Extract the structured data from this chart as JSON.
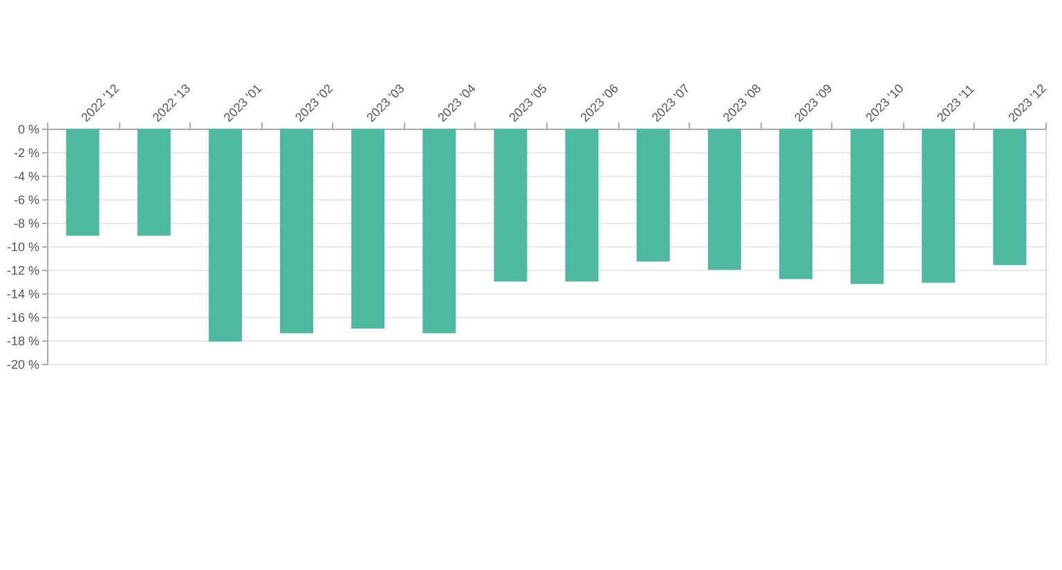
{
  "chart_data": {
    "type": "bar",
    "categories": [
      "2022 '12",
      "2022 '13",
      "2023 '01",
      "2023 '02",
      "2023 '03",
      "2023 '04",
      "2023 '05",
      "2023 '06",
      "2023 '07",
      "2023 '08",
      "2023 '09",
      "2023 '10",
      "2023 '11",
      "2023 '12"
    ],
    "values": [
      -9.1,
      -9.1,
      -18.1,
      -17.4,
      -17.0,
      -17.4,
      -13.0,
      -13.0,
      -11.3,
      -12.0,
      -12.8,
      -13.2,
      -13.1,
      -11.6
    ],
    "color": "#4cb9a0",
    "ylim": [
      -20,
      0
    ],
    "yticks": [
      {
        "value": 0,
        "label": "0 %"
      },
      {
        "value": -2,
        "label": "-2 %"
      },
      {
        "value": -4,
        "label": "-4 %"
      },
      {
        "value": -6,
        "label": "-6 %"
      },
      {
        "value": -8,
        "label": "-8 %"
      },
      {
        "value": -10,
        "label": "-10 %"
      },
      {
        "value": -12,
        "label": "-12 %"
      },
      {
        "value": -14,
        "label": "-14 %"
      },
      {
        "value": -16,
        "label": "-16 %"
      },
      {
        "value": -18,
        "label": "-18 %"
      },
      {
        "value": -20,
        "label": "-20 %"
      }
    ],
    "grid": "y"
  }
}
